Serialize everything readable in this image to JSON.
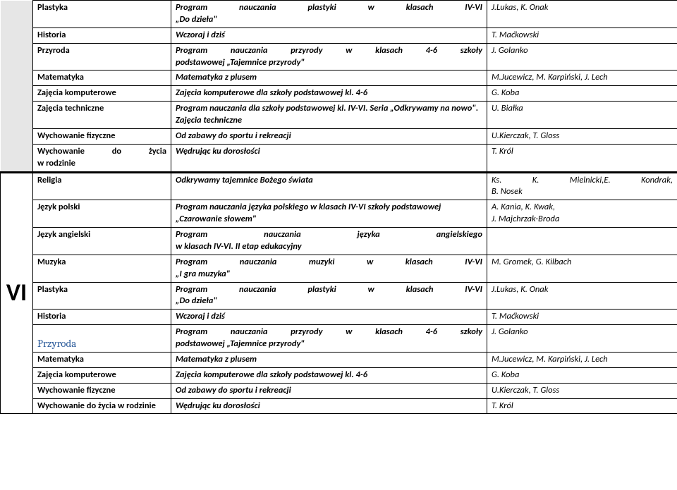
{
  "grade_label": "VI",
  "section1": [
    {
      "subject": "Plastyka",
      "program": "Program nauczania plastyki w klasach IV-VI „Do dzieła\"",
      "author": "J.Lukas, K. Onak",
      "justify": true
    },
    {
      "subject": "Historia",
      "program": "Wczoraj i dziś",
      "author": "T. Maćkowski"
    },
    {
      "subject": "Przyroda",
      "program": "Program nauczania przyrody w klasach 4-6 szkoły podstawowej „Tajemnice przyrody\"",
      "author": "J. Golanko",
      "justify": true
    },
    {
      "subject": "Matematyka",
      "program": "Matematyka z plusem",
      "author": "M.Jucewicz, M. Karpiński, J. Lech"
    },
    {
      "subject": "Zajęcia komputerowe",
      "program": "Zajęcia komputerowe dla szkoły podstawowej kl. 4-6",
      "author": "G. Koba"
    },
    {
      "subject": "Zajęcia techniczne",
      "program": "Program nauczania dla szkoły podstawowej kl. IV-VI. Seria „Odkrywamy na nowo\". Zajęcia techniczne",
      "author": "U. Białka"
    },
    {
      "subject": "Wychowanie fizyczne",
      "program": "Od zabawy do sportu i rekreacji",
      "author": "U.Kierczak, T. Gloss"
    },
    {
      "subject": "Wychowanie do życia w rodzinie",
      "program": "Wędrując ku dorosłości",
      "author": "T. Król",
      "subj_justify": true
    }
  ],
  "section2": [
    {
      "subject": "Religia",
      "program": "Odkrywamy tajemnice Bożego świata",
      "author": "Ks. K. Mielnicki,E. Kondrak, B. Nosek",
      "auth_justify": true
    },
    {
      "subject": "Język polski",
      "program": "Program nauczania języka polskiego w klasach IV-VI szkoły podstawowej „Czarowanie słowem\"",
      "author": "A. Kania, K. Kwak,\nJ. Majchrzak-Broda"
    },
    {
      "subject": "Język angielski",
      "program": "Program nauczania języka angielskiego w klasach IV-VI. II etap edukacyjny",
      "author": "",
      "justify": true
    },
    {
      "subject": "Muzyka",
      "program": "Program nauczania muzyki w klasach IV-VI „I gra muzyka\"",
      "author": "M. Gromek, G. Kilbach",
      "justify": true
    },
    {
      "subject": "Plastyka",
      "program": "Program nauczania plastyki w klasach IV-VI „Do dzieła\"",
      "author": "J.Lukas, K. Onak",
      "justify": true
    },
    {
      "subject": "Historia",
      "program": "Wczoraj i dziś",
      "author": "T. Maćkowski"
    },
    {
      "subject": "Przyroda",
      "program": "Program nauczania przyrody w klasach 4-6 szkoły podstawowej „Tajemnice przyrody\"",
      "author": "J. Golanko",
      "subj_special": true,
      "justify": true
    },
    {
      "subject": "Matematyka",
      "program": "Matematyka z plusem",
      "author": "M.Jucewicz, M. Karpiński, J. Lech"
    },
    {
      "subject": "Zajęcia komputerowe",
      "program": "Zajęcia komputerowe dla szkoły podstawowej kl. 4-6",
      "author": "G. Koba"
    },
    {
      "subject": "Wychowanie fizyczne",
      "program": "Od zabawy do sportu i rekreacji",
      "author": "U.Kierczak, T. Gloss"
    },
    {
      "subject": "Wychowanie do życia w rodzinie",
      "program": "Wędrując ku dorosłości",
      "author": "T. Król"
    }
  ]
}
